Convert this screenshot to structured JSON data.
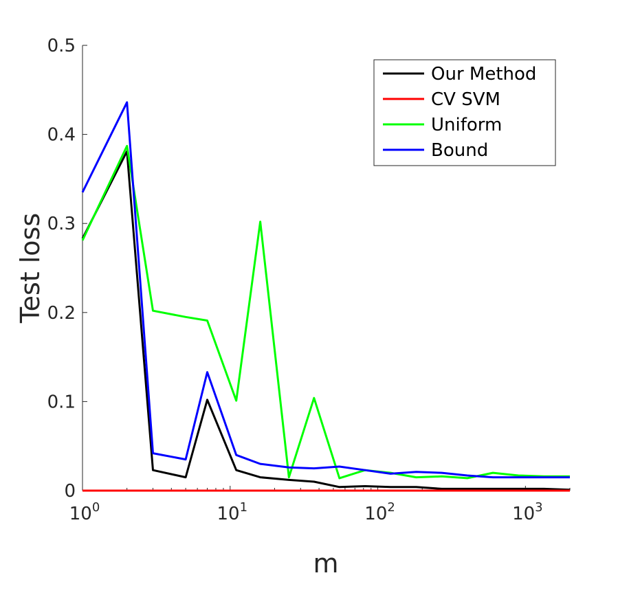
{
  "chart_data": {
    "type": "line",
    "xlabel": "m",
    "ylabel": "Test loss",
    "xscale": "log",
    "xlim": [
      1,
      2000
    ],
    "ylim": [
      0,
      0.5
    ],
    "grid": false,
    "legend_position": "top-right",
    "yticks": [
      {
        "value": 0,
        "label": "0"
      },
      {
        "value": 0.1,
        "label": "0.1"
      },
      {
        "value": 0.2,
        "label": "0.2"
      },
      {
        "value": 0.3,
        "label": "0.3"
      },
      {
        "value": 0.4,
        "label": "0.4"
      },
      {
        "value": 0.5,
        "label": "0.5"
      }
    ],
    "xticks": [
      {
        "value": 1,
        "base": "10",
        "exp": "0"
      },
      {
        "value": 10,
        "base": "10",
        "exp": "1"
      },
      {
        "value": 100,
        "base": "10",
        "exp": "2"
      },
      {
        "value": 1000,
        "base": "10",
        "exp": "3"
      }
    ],
    "series": [
      {
        "name": "Our Method",
        "color": "#000000",
        "x": [
          1,
          2,
          3,
          5,
          7,
          11,
          16,
          25,
          37,
          55,
          82,
          122,
          182,
          271,
          404,
          602,
          897,
          1337,
          2000
        ],
        "y": [
          0.283,
          0.381,
          0.023,
          0.015,
          0.102,
          0.023,
          0.015,
          0.012,
          0.01,
          0.004,
          0.005,
          0.004,
          0.004,
          0.002,
          0.002,
          0.002,
          0.002,
          0.002,
          0.001
        ]
      },
      {
        "name": "CV SVM",
        "color": "#ff0000",
        "x": [
          1,
          2,
          3,
          5,
          7,
          11,
          16,
          25,
          37,
          55,
          82,
          122,
          182,
          271,
          404,
          602,
          897,
          1337,
          2000
        ],
        "y": [
          0,
          0,
          0,
          0,
          0,
          0,
          0,
          0,
          0,
          0,
          0,
          0,
          0,
          0,
          0,
          0,
          0,
          0,
          0
        ]
      },
      {
        "name": "Uniform",
        "color": "#00ff00",
        "x": [
          1,
          2,
          3,
          5,
          7,
          11,
          16,
          25,
          37,
          55,
          82,
          122,
          182,
          271,
          404,
          602,
          897,
          1337,
          2000
        ],
        "y": [
          0.281,
          0.387,
          0.202,
          0.195,
          0.191,
          0.101,
          0.302,
          0.015,
          0.104,
          0.014,
          0.023,
          0.02,
          0.015,
          0.016,
          0.014,
          0.02,
          0.017,
          0.016,
          0.016
        ]
      },
      {
        "name": "Bound",
        "color": "#0000ff",
        "x": [
          1,
          2,
          3,
          5,
          7,
          11,
          16,
          25,
          37,
          55,
          82,
          122,
          182,
          271,
          404,
          602,
          897,
          1337,
          2000
        ],
        "y": [
          0.335,
          0.436,
          0.042,
          0.035,
          0.133,
          0.04,
          0.03,
          0.026,
          0.025,
          0.027,
          0.023,
          0.019,
          0.021,
          0.02,
          0.017,
          0.015,
          0.015,
          0.015,
          0.015
        ]
      }
    ]
  }
}
